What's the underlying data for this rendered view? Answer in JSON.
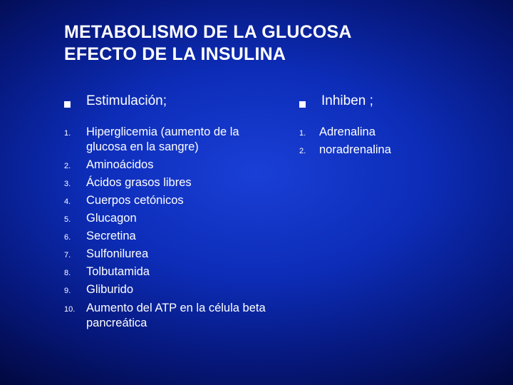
{
  "colors": {
    "text": "#ffffff",
    "bg_center": "#1a3fd6",
    "bg_edge": "#000018"
  },
  "title_line1": "METABOLISMO DE LA GLUCOSA",
  "title_line2": "EFECTO DE LA INSULINA",
  "left": {
    "heading": "Estimulación;",
    "items": [
      {
        "n": "1.",
        "t": "Hiperglicemia (aumento de la glucosa en la sangre)"
      },
      {
        "n": "2.",
        "t": "Aminoácidos"
      },
      {
        "n": "3.",
        "t": "Ácidos grasos libres"
      },
      {
        "n": "4.",
        "t": "Cuerpos cetónicos"
      },
      {
        "n": "5.",
        "t": "Glucagon"
      },
      {
        "n": "6.",
        "t": "Secretina"
      },
      {
        "n": "7.",
        "t": "Sulfonilurea"
      },
      {
        "n": "8.",
        "t": "Tolbutamida"
      },
      {
        "n": "9.",
        "t": "Gliburido"
      },
      {
        "n": "10.",
        "t": "Aumento del ATP en la célula beta pancreática"
      }
    ]
  },
  "right": {
    "heading": "Inhiben ;",
    "items": [
      {
        "n": "1.",
        "t": "Adrenalina"
      },
      {
        "n": "2.",
        "t": "noradrenalina"
      }
    ]
  }
}
